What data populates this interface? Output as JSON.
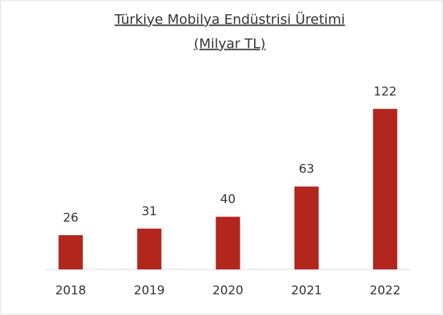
{
  "chart_data": {
    "type": "bar",
    "title": "Türkiye Mobilya Endüstrisi Üretimi",
    "subtitle": "(Milyar TL)",
    "categories": [
      "2018",
      "2019",
      "2020",
      "2021",
      "2022"
    ],
    "values": [
      26,
      31,
      40,
      63,
      122
    ],
    "color": "#b3261e",
    "ylim": [
      0,
      130
    ]
  }
}
